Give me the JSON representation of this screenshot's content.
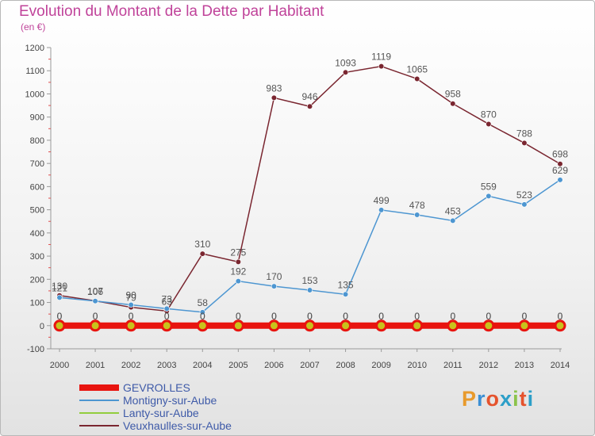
{
  "title": "Evolution du Montant de la Dette par Habitant",
  "subtitle": "(en €)",
  "logo": {
    "text": "Proxiti",
    "colors": [
      "#e89a2c",
      "#3b8fd4",
      "#e5532d",
      "#2d9fc8",
      "#8bc34a",
      "#e5532d",
      "#2d9fc8"
    ]
  },
  "chart_data": {
    "type": "line",
    "title": "Evolution du Montant de la Dette par Habitant",
    "subtitle": "(en €)",
    "x": [
      2000,
      2001,
      2002,
      2003,
      2004,
      2005,
      2006,
      2007,
      2008,
      2009,
      2010,
      2011,
      2012,
      2013,
      2014
    ],
    "ylim": [
      -100,
      1200
    ],
    "yticks": [
      -100,
      0,
      100,
      200,
      300,
      400,
      500,
      600,
      700,
      800,
      900,
      1000,
      1100,
      1200
    ],
    "grid": false,
    "legend_position": "bottom-left",
    "series": [
      {
        "name": "GEVROLLES",
        "color": "#e8140f",
        "values": [
          0,
          0,
          0,
          0,
          0,
          0,
          0,
          0,
          0,
          0,
          0,
          0,
          0,
          0,
          0
        ]
      },
      {
        "name": "Montigny-sur-Aube",
        "color": "#4d96d1",
        "values": [
          121,
          106,
          90,
          73,
          58,
          192,
          170,
          153,
          135,
          499,
          478,
          453,
          559,
          523,
          629
        ]
      },
      {
        "name": "Lanty-sur-Aube",
        "color": "#92cd3e",
        "values": [
          0,
          0,
          0,
          0,
          0,
          0,
          0,
          0,
          0,
          0,
          0,
          0,
          0,
          0,
          0
        ]
      },
      {
        "name": "Veuxhaulles-sur-Aube",
        "color": "#7a2630",
        "values": [
          130,
          107,
          79,
          63,
          310,
          275,
          983,
          946,
          1093,
          1119,
          1065,
          958,
          870,
          788,
          698
        ]
      }
    ]
  }
}
